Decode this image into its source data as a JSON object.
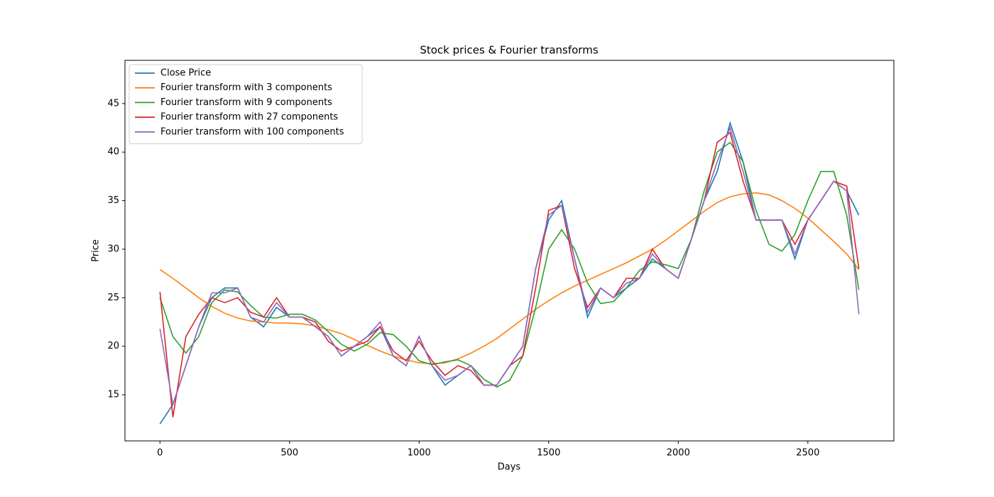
{
  "chart_data": {
    "type": "line",
    "title": "Stock prices & Fourier transforms",
    "x_label": "Days",
    "y_label": "Price",
    "x": [
      0,
      50,
      100,
      150,
      200,
      250,
      300,
      350,
      400,
      450,
      500,
      550,
      600,
      650,
      700,
      750,
      800,
      850,
      900,
      950,
      1000,
      1050,
      1100,
      1150,
      1200,
      1250,
      1300,
      1350,
      1400,
      1450,
      1500,
      1550,
      1600,
      1650,
      1700,
      1750,
      1800,
      1850,
      1900,
      1950,
      2000,
      2050,
      2100,
      2150,
      2200,
      2250,
      2300,
      2350,
      2400,
      2450,
      2500,
      2550,
      2600,
      2650,
      2697
    ],
    "series": [
      {
        "name": "Close Price",
        "color": "#1f77b4",
        "values": [
          12,
          14,
          18,
          22,
          25,
          26,
          26,
          23,
          22,
          24,
          23,
          23,
          22,
          21,
          19,
          20,
          21,
          22,
          19,
          18,
          21,
          18,
          16,
          17,
          18,
          16,
          16,
          18,
          20,
          28,
          33,
          35,
          29,
          23,
          26,
          25,
          26,
          27,
          29,
          28,
          27,
          31,
          35,
          38,
          43,
          39,
          33,
          33,
          33,
          29,
          33,
          35,
          37,
          36,
          33.5
        ]
      },
      {
        "name": "Fourier transform with 3 components",
        "color": "#ff7f0e",
        "values": [
          27.9,
          27.0,
          26.0,
          25.0,
          24.1,
          23.4,
          22.9,
          22.6,
          22.5,
          22.4,
          22.4,
          22.3,
          22.1,
          21.7,
          21.3,
          20.7,
          20.1,
          19.5,
          19.0,
          18.6,
          18.3,
          18.2,
          18.3,
          18.7,
          19.3,
          20.0,
          20.8,
          21.8,
          22.8,
          23.8,
          24.7,
          25.5,
          26.2,
          26.8,
          27.4,
          28.0,
          28.6,
          29.3,
          30.0,
          30.9,
          31.9,
          32.9,
          33.9,
          34.8,
          35.4,
          35.7,
          35.8,
          35.6,
          35.0,
          34.2,
          33.2,
          32.0,
          30.8,
          29.5,
          27.9
        ]
      },
      {
        "name": "Fourier transform with 9 components",
        "color": "#2ca02c",
        "values": [
          25,
          21,
          19.3,
          21,
          24.5,
          25.8,
          25.6,
          24.2,
          23,
          22.9,
          23.3,
          23.3,
          22.7,
          21.5,
          20.2,
          19.5,
          20.2,
          21.4,
          21.2,
          20,
          18.5,
          18.1,
          18.4,
          18.6,
          18,
          16.6,
          15.8,
          16.5,
          19,
          24,
          30,
          32,
          30,
          26.5,
          24.4,
          24.6,
          26,
          27.8,
          28.7,
          28.4,
          28,
          31,
          36,
          40,
          41,
          39,
          34,
          30.5,
          29.8,
          31.5,
          35,
          38,
          38,
          33.5,
          25.8
        ]
      },
      {
        "name": "Fourier transform with 27 components",
        "color": "#d62728",
        "values": [
          25.6,
          12.7,
          21,
          23.3,
          25,
          24.5,
          25,
          23.5,
          23,
          25,
          23,
          23,
          22.5,
          20.5,
          19.5,
          20,
          20.5,
          22,
          19.5,
          18.5,
          20.5,
          18.5,
          17,
          18,
          17.5,
          16,
          16,
          18,
          19,
          26,
          34,
          34.5,
          28,
          24,
          26,
          25,
          27,
          27,
          30,
          28,
          27,
          31,
          35,
          41,
          42,
          37,
          33,
          33,
          33,
          30.5,
          33,
          35,
          37,
          36.5,
          28
        ]
      },
      {
        "name": "Fourier transform with 100 components",
        "color": "#9467bd",
        "values": [
          21.8,
          14,
          18,
          22,
          25.5,
          25.5,
          26,
          23,
          22.5,
          24.5,
          23,
          23,
          22,
          21,
          19,
          20,
          21,
          22.5,
          19,
          18,
          21,
          18,
          16.5,
          17,
          18,
          16,
          16,
          18,
          20,
          28,
          33.5,
          34.5,
          29,
          23.5,
          26,
          25,
          26.5,
          27,
          29.5,
          28,
          27,
          31,
          35,
          39,
          42.5,
          38,
          33,
          33,
          33,
          29.5,
          33,
          35,
          37,
          36,
          23.3
        ]
      }
    ],
    "xlim": [
      -135,
      2832
    ],
    "ylim": [
      10.25,
      49.45
    ],
    "xticks": [
      0,
      500,
      1000,
      1500,
      2000,
      2500
    ],
    "yticks": [
      15,
      20,
      25,
      30,
      35,
      40,
      45
    ],
    "legend": "upper left",
    "grid": false
  }
}
